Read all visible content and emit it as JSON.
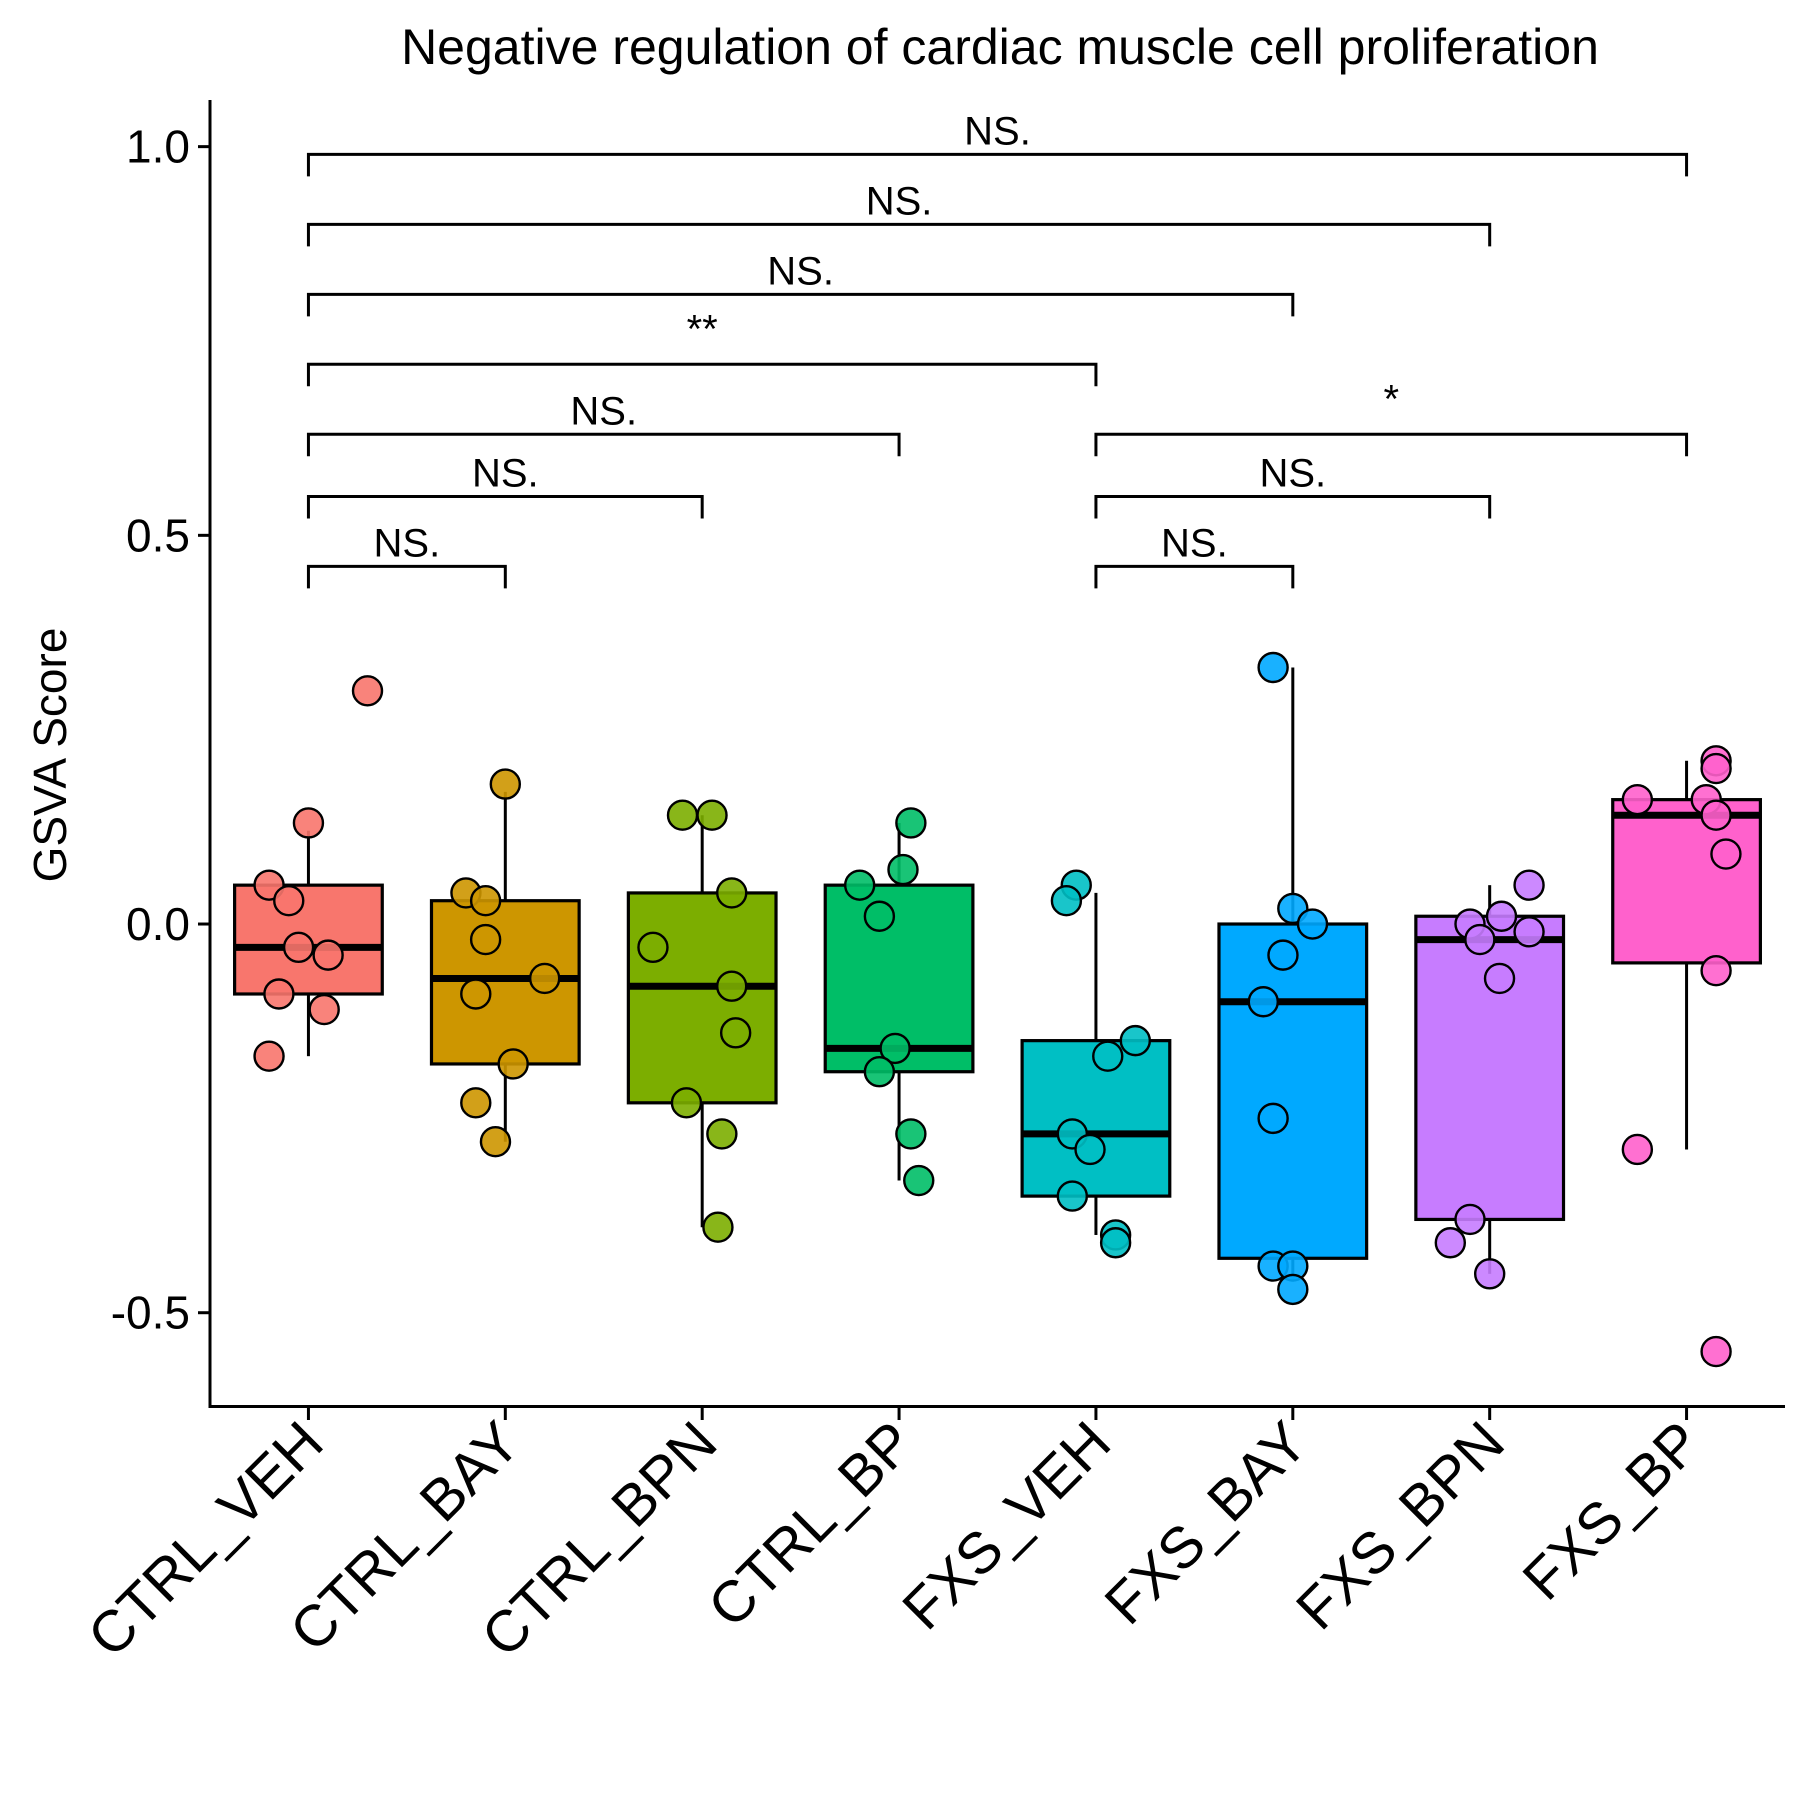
{
  "chart_data": {
    "type": "box",
    "title": "Negative regulation of cardiac muscle cell proliferation",
    "ylabel": "GSVA Score",
    "xlabel": "",
    "ylim": [
      -0.62,
      1.06
    ],
    "yticks": [
      -0.5,
      0.0,
      0.5,
      1.0
    ],
    "ytick_labels": [
      "-0.5",
      "0.0",
      "0.5",
      "1.0"
    ],
    "grid": false,
    "legend": "none",
    "categories": [
      "CTRL_VEH",
      "CTRL_BAY",
      "CTRL_BPN",
      "CTRL_BP",
      "FXS_VEH",
      "FXS_BAY",
      "FXS_BPN",
      "FXS_BP"
    ],
    "colors": [
      "#F8766D",
      "#CD9600",
      "#7CAE00",
      "#00BE67",
      "#00BFC4",
      "#00A9FF",
      "#C77CFF",
      "#FF61CC"
    ],
    "boxes": [
      {
        "whisker_low": -0.17,
        "q1": -0.09,
        "median": -0.03,
        "q3": 0.05,
        "whisker_high": 0.12
      },
      {
        "whisker_low": -0.28,
        "q1": -0.18,
        "median": -0.07,
        "q3": 0.03,
        "whisker_high": 0.17
      },
      {
        "whisker_low": -0.39,
        "q1": -0.23,
        "median": -0.08,
        "q3": 0.04,
        "whisker_high": 0.14
      },
      {
        "whisker_low": -0.33,
        "q1": -0.19,
        "median": -0.16,
        "q3": 0.05,
        "whisker_high": 0.13
      },
      {
        "whisker_low": -0.4,
        "q1": -0.35,
        "median": -0.27,
        "q3": -0.15,
        "whisker_high": 0.04
      },
      {
        "whisker_low": -0.46,
        "q1": -0.43,
        "median": -0.1,
        "q3": 0.0,
        "whisker_high": 0.33
      },
      {
        "whisker_low": -0.45,
        "q1": -0.38,
        "median": -0.02,
        "q3": 0.01,
        "whisker_high": 0.05
      },
      {
        "whisker_low": -0.29,
        "q1": -0.05,
        "median": 0.14,
        "q3": 0.16,
        "whisker_high": 0.21
      }
    ],
    "points": [
      [
        [
          0.3,
          0.3
        ],
        [
          0.0,
          0.13
        ],
        [
          -0.2,
          0.05
        ],
        [
          -0.1,
          0.03
        ],
        [
          -0.05,
          -0.03
        ],
        [
          0.1,
          -0.04
        ],
        [
          -0.15,
          -0.09
        ],
        [
          0.08,
          -0.11
        ],
        [
          -0.2,
          -0.17
        ]
      ],
      [
        [
          0.0,
          0.18
        ],
        [
          -0.2,
          0.04
        ],
        [
          -0.1,
          0.03
        ],
        [
          -0.1,
          -0.02
        ],
        [
          0.2,
          -0.07
        ],
        [
          -0.15,
          -0.09
        ],
        [
          0.04,
          -0.18
        ],
        [
          -0.15,
          -0.23
        ],
        [
          -0.05,
          -0.28
        ]
      ],
      [
        [
          -0.1,
          0.14
        ],
        [
          0.05,
          0.14
        ],
        [
          0.15,
          0.04
        ],
        [
          -0.25,
          -0.03
        ],
        [
          0.15,
          -0.08
        ],
        [
          0.17,
          -0.14
        ],
        [
          -0.08,
          -0.23
        ],
        [
          0.1,
          -0.27
        ],
        [
          0.08,
          -0.39
        ]
      ],
      [
        [
          0.06,
          0.13
        ],
        [
          0.02,
          0.07
        ],
        [
          -0.2,
          0.05
        ],
        [
          -0.1,
          0.01
        ],
        [
          -0.02,
          -0.16
        ],
        [
          -0.1,
          -0.19
        ],
        [
          0.06,
          -0.27
        ],
        [
          0.1,
          -0.33
        ]
      ],
      [
        [
          -0.1,
          0.05
        ],
        [
          -0.15,
          0.03
        ],
        [
          0.2,
          -0.15
        ],
        [
          0.06,
          -0.17
        ],
        [
          -0.12,
          -0.27
        ],
        [
          -0.03,
          -0.29
        ],
        [
          -0.12,
          -0.35
        ],
        [
          0.1,
          -0.4
        ],
        [
          0.1,
          -0.41
        ]
      ],
      [
        [
          -0.1,
          0.33
        ],
        [
          0.0,
          0.02
        ],
        [
          0.1,
          0.0
        ],
        [
          -0.05,
          -0.04
        ],
        [
          -0.15,
          -0.1
        ],
        [
          -0.1,
          -0.25
        ],
        [
          -0.1,
          -0.44
        ],
        [
          0.0,
          -0.44
        ],
        [
          0.0,
          -0.47
        ]
      ],
      [
        [
          0.2,
          0.05
        ],
        [
          0.06,
          0.01
        ],
        [
          -0.1,
          0.0
        ],
        [
          0.2,
          -0.01
        ],
        [
          -0.05,
          -0.02
        ],
        [
          0.05,
          -0.07
        ],
        [
          -0.1,
          -0.38
        ],
        [
          -0.2,
          -0.41
        ],
        [
          0.0,
          -0.45
        ]
      ],
      [
        [
          0.15,
          0.21
        ],
        [
          0.15,
          0.2
        ],
        [
          -0.25,
          0.16
        ],
        [
          0.1,
          0.16
        ],
        [
          0.15,
          0.14
        ],
        [
          0.2,
          0.09
        ],
        [
          0.15,
          -0.06
        ],
        [
          -0.25,
          -0.29
        ],
        [
          0.15,
          -0.55
        ]
      ]
    ],
    "comparisons": [
      {
        "from": 0,
        "to": 7,
        "y": 0.99,
        "label": "NS."
      },
      {
        "from": 0,
        "to": 6,
        "y": 0.9,
        "label": "NS."
      },
      {
        "from": 0,
        "to": 5,
        "y": 0.81,
        "label": "NS."
      },
      {
        "from": 0,
        "to": 4,
        "y": 0.72,
        "label": "**"
      },
      {
        "from": 0,
        "to": 3,
        "y": 0.63,
        "label": "NS."
      },
      {
        "from": 0,
        "to": 2,
        "y": 0.55,
        "label": "NS."
      },
      {
        "from": 0,
        "to": 1,
        "y": 0.46,
        "label": "NS."
      },
      {
        "from": 4,
        "to": 7,
        "y": 0.63,
        "label": "*"
      },
      {
        "from": 4,
        "to": 6,
        "y": 0.55,
        "label": "NS."
      },
      {
        "from": 4,
        "to": 5,
        "y": 0.46,
        "label": "NS."
      }
    ]
  }
}
